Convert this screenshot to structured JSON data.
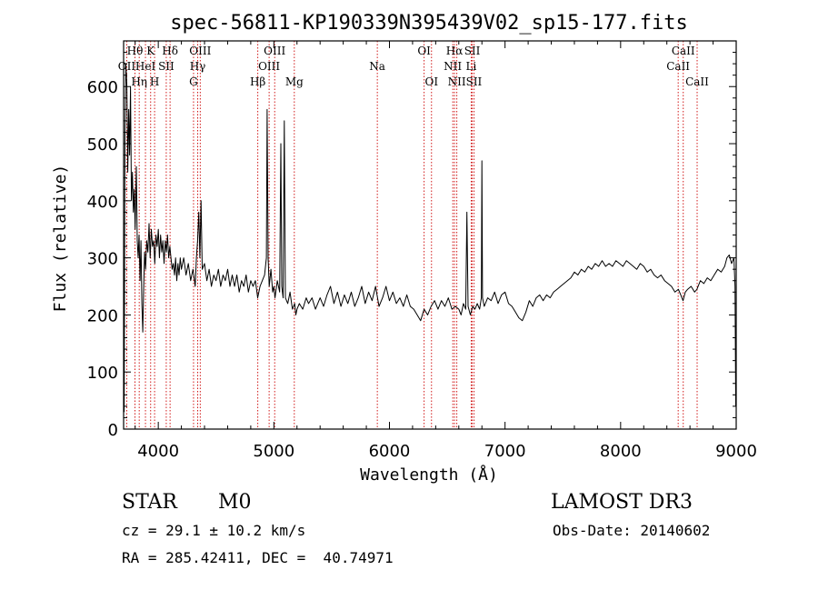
{
  "chart_data": {
    "type": "line",
    "title": "spec-56811-KP190339N395439V02_sp15-177.fits",
    "xlabel": "Wavelength (Å)",
    "ylabel": "Flux (relative)",
    "xlim": [
      3700,
      9000
    ],
    "ylim": [
      0,
      680
    ],
    "x_ticks": [
      4000,
      5000,
      6000,
      7000,
      8000,
      9000
    ],
    "y_ticks": [
      0,
      100,
      200,
      300,
      400,
      500,
      600
    ],
    "series_color": "#000000",
    "line_marker_color": "#cc0000",
    "spectrum": [
      [
        3705,
        30
      ],
      [
        3712,
        520
      ],
      [
        3720,
        640
      ],
      [
        3728,
        600
      ],
      [
        3736,
        450
      ],
      [
        3744,
        560
      ],
      [
        3752,
        480
      ],
      [
        3760,
        600
      ],
      [
        3768,
        400
      ],
      [
        3776,
        450
      ],
      [
        3784,
        380
      ],
      [
        3792,
        420
      ],
      [
        3800,
        350
      ],
      [
        3810,
        460
      ],
      [
        3818,
        330
      ],
      [
        3826,
        300
      ],
      [
        3834,
        340
      ],
      [
        3842,
        260
      ],
      [
        3850,
        330
      ],
      [
        3858,
        220
      ],
      [
        3866,
        170
      ],
      [
        3874,
        250
      ],
      [
        3882,
        310
      ],
      [
        3890,
        280
      ],
      [
        3900,
        330
      ],
      [
        3910,
        310
      ],
      [
        3920,
        360
      ],
      [
        3930,
        300
      ],
      [
        3940,
        350
      ],
      [
        3950,
        320
      ],
      [
        3960,
        330
      ],
      [
        3970,
        290
      ],
      [
        3980,
        340
      ],
      [
        3990,
        320
      ],
      [
        4000,
        350
      ],
      [
        4010,
        300
      ],
      [
        4020,
        340
      ],
      [
        4030,
        310
      ],
      [
        4040,
        330
      ],
      [
        4050,
        290
      ],
      [
        4060,
        330
      ],
      [
        4070,
        310
      ],
      [
        4080,
        340
      ],
      [
        4090,
        300
      ],
      [
        4100,
        320
      ],
      [
        4110,
        300
      ],
      [
        4120,
        280
      ],
      [
        4130,
        290
      ],
      [
        4140,
        270
      ],
      [
        4150,
        300
      ],
      [
        4160,
        260
      ],
      [
        4170,
        290
      ],
      [
        4180,
        270
      ],
      [
        4190,
        300
      ],
      [
        4200,
        280
      ],
      [
        4220,
        300
      ],
      [
        4240,
        270
      ],
      [
        4260,
        290
      ],
      [
        4280,
        260
      ],
      [
        4300,
        280
      ],
      [
        4320,
        250
      ],
      [
        4330,
        300
      ],
      [
        4340,
        330
      ],
      [
        4350,
        380
      ],
      [
        4360,
        300
      ],
      [
        4370,
        400
      ],
      [
        4380,
        280
      ],
      [
        4400,
        290
      ],
      [
        4420,
        260
      ],
      [
        4440,
        280
      ],
      [
        4460,
        250
      ],
      [
        4480,
        270
      ],
      [
        4500,
        260
      ],
      [
        4520,
        280
      ],
      [
        4540,
        250
      ],
      [
        4560,
        270
      ],
      [
        4580,
        260
      ],
      [
        4600,
        280
      ],
      [
        4620,
        250
      ],
      [
        4640,
        270
      ],
      [
        4660,
        250
      ],
      [
        4680,
        270
      ],
      [
        4700,
        240
      ],
      [
        4720,
        260
      ],
      [
        4740,
        250
      ],
      [
        4760,
        270
      ],
      [
        4780,
        240
      ],
      [
        4800,
        260
      ],
      [
        4820,
        250
      ],
      [
        4840,
        260
      ],
      [
        4860,
        230
      ],
      [
        4880,
        250
      ],
      [
        4900,
        260
      ],
      [
        4920,
        270
      ],
      [
        4935,
        300
      ],
      [
        4942,
        560
      ],
      [
        4950,
        300
      ],
      [
        4960,
        250
      ],
      [
        4975,
        280
      ],
      [
        4990,
        240
      ],
      [
        5000,
        250
      ],
      [
        5010,
        230
      ],
      [
        5030,
        260
      ],
      [
        5050,
        240
      ],
      [
        5060,
        500
      ],
      [
        5068,
        250
      ],
      [
        5080,
        230
      ],
      [
        5090,
        540
      ],
      [
        5100,
        230
      ],
      [
        5120,
        220
      ],
      [
        5140,
        240
      ],
      [
        5160,
        210
      ],
      [
        5180,
        220
      ],
      [
        5190,
        200
      ],
      [
        5200,
        210
      ],
      [
        5220,
        220
      ],
      [
        5250,
        210
      ],
      [
        5280,
        230
      ],
      [
        5300,
        220
      ],
      [
        5330,
        230
      ],
      [
        5360,
        210
      ],
      [
        5400,
        230
      ],
      [
        5430,
        215
      ],
      [
        5460,
        235
      ],
      [
        5490,
        250
      ],
      [
        5520,
        220
      ],
      [
        5550,
        240
      ],
      [
        5580,
        215
      ],
      [
        5610,
        235
      ],
      [
        5640,
        220
      ],
      [
        5670,
        240
      ],
      [
        5700,
        215
      ],
      [
        5730,
        230
      ],
      [
        5760,
        250
      ],
      [
        5790,
        220
      ],
      [
        5820,
        240
      ],
      [
        5850,
        225
      ],
      [
        5880,
        250
      ],
      [
        5910,
        215
      ],
      [
        5940,
        230
      ],
      [
        5970,
        250
      ],
      [
        6000,
        225
      ],
      [
        6030,
        240
      ],
      [
        6060,
        220
      ],
      [
        6090,
        230
      ],
      [
        6120,
        215
      ],
      [
        6150,
        235
      ],
      [
        6180,
        215
      ],
      [
        6210,
        210
      ],
      [
        6240,
        200
      ],
      [
        6270,
        190
      ],
      [
        6300,
        210
      ],
      [
        6330,
        200
      ],
      [
        6360,
        215
      ],
      [
        6390,
        225
      ],
      [
        6420,
        210
      ],
      [
        6450,
        225
      ],
      [
        6480,
        215
      ],
      [
        6510,
        230
      ],
      [
        6540,
        210
      ],
      [
        6570,
        215
      ],
      [
        6600,
        210
      ],
      [
        6620,
        200
      ],
      [
        6640,
        220
      ],
      [
        6660,
        210
      ],
      [
        6670,
        380
      ],
      [
        6680,
        215
      ],
      [
        6700,
        200
      ],
      [
        6720,
        215
      ],
      [
        6740,
        210
      ],
      [
        6760,
        220
      ],
      [
        6780,
        210
      ],
      [
        6795,
        230
      ],
      [
        6800,
        470
      ],
      [
        6805,
        230
      ],
      [
        6820,
        215
      ],
      [
        6850,
        230
      ],
      [
        6880,
        225
      ],
      [
        6910,
        240
      ],
      [
        6940,
        220
      ],
      [
        6970,
        235
      ],
      [
        7000,
        240
      ],
      [
        7030,
        220
      ],
      [
        7060,
        215
      ],
      [
        7090,
        205
      ],
      [
        7120,
        195
      ],
      [
        7150,
        190
      ],
      [
        7180,
        205
      ],
      [
        7210,
        225
      ],
      [
        7240,
        215
      ],
      [
        7270,
        230
      ],
      [
        7300,
        235
      ],
      [
        7330,
        225
      ],
      [
        7360,
        235
      ],
      [
        7390,
        230
      ],
      [
        7420,
        240
      ],
      [
        7450,
        245
      ],
      [
        7480,
        250
      ],
      [
        7510,
        255
      ],
      [
        7540,
        260
      ],
      [
        7570,
        265
      ],
      [
        7600,
        275
      ],
      [
        7630,
        270
      ],
      [
        7660,
        280
      ],
      [
        7690,
        275
      ],
      [
        7720,
        285
      ],
      [
        7750,
        280
      ],
      [
        7780,
        290
      ],
      [
        7810,
        285
      ],
      [
        7840,
        295
      ],
      [
        7870,
        285
      ],
      [
        7900,
        290
      ],
      [
        7930,
        285
      ],
      [
        7960,
        295
      ],
      [
        7990,
        290
      ],
      [
        8020,
        285
      ],
      [
        8050,
        295
      ],
      [
        8080,
        290
      ],
      [
        8110,
        285
      ],
      [
        8140,
        280
      ],
      [
        8170,
        290
      ],
      [
        8200,
        285
      ],
      [
        8230,
        275
      ],
      [
        8260,
        280
      ],
      [
        8290,
        270
      ],
      [
        8320,
        265
      ],
      [
        8350,
        270
      ],
      [
        8380,
        260
      ],
      [
        8410,
        255
      ],
      [
        8440,
        250
      ],
      [
        8470,
        240
      ],
      [
        8500,
        245
      ],
      [
        8520,
        235
      ],
      [
        8540,
        225
      ],
      [
        8560,
        240
      ],
      [
        8580,
        245
      ],
      [
        8610,
        250
      ],
      [
        8640,
        240
      ],
      [
        8660,
        245
      ],
      [
        8690,
        260
      ],
      [
        8720,
        255
      ],
      [
        8750,
        265
      ],
      [
        8780,
        260
      ],
      [
        8810,
        270
      ],
      [
        8840,
        280
      ],
      [
        8870,
        275
      ],
      [
        8900,
        285
      ],
      [
        8920,
        300
      ],
      [
        8940,
        305
      ],
      [
        8960,
        290
      ],
      [
        8980,
        300
      ],
      [
        8990,
        250
      ],
      [
        8996,
        40
      ]
    ],
    "line_markers": [
      {
        "label": "OII",
        "wl": 3727,
        "row": 2
      },
      {
        "label": "Hθ",
        "wl": 3798,
        "row": 1
      },
      {
        "label": "Hη",
        "wl": 3835,
        "row": 3
      },
      {
        "label": "HeI",
        "wl": 3889,
        "row": 2
      },
      {
        "label": "K",
        "wl": 3934,
        "row": 1
      },
      {
        "label": "H",
        "wl": 3968,
        "row": 3
      },
      {
        "label": "SII",
        "wl": 4069,
        "row": 2
      },
      {
        "label": "Hδ",
        "wl": 4102,
        "row": 1
      },
      {
        "label": "G",
        "wl": 4305,
        "row": 3
      },
      {
        "label": "Hγ",
        "wl": 4341,
        "row": 2
      },
      {
        "label": "OIII",
        "wl": 4363,
        "row": 1
      },
      {
        "label": "Hβ",
        "wl": 4861,
        "row": 3
      },
      {
        "label": "OIII",
        "wl": 4959,
        "row": 2
      },
      {
        "label": "OIII",
        "wl": 5007,
        "row": 1
      },
      {
        "label": "Mg",
        "wl": 5177,
        "row": 3
      },
      {
        "label": "Na",
        "wl": 5895,
        "row": 2
      },
      {
        "label": "OI",
        "wl": 6300,
        "row": 1
      },
      {
        "label": "OI",
        "wl": 6364,
        "row": 3
      },
      {
        "label": "NII",
        "wl": 6548,
        "row": 2
      },
      {
        "label": "Hα",
        "wl": 6563,
        "row": 1
      },
      {
        "label": "NII",
        "wl": 6583,
        "row": 3
      },
      {
        "label": "Li",
        "wl": 6707,
        "row": 2
      },
      {
        "label": "SII",
        "wl": 6716,
        "row": 1
      },
      {
        "label": "SII",
        "wl": 6731,
        "row": 3
      },
      {
        "label": "CaII",
        "wl": 8498,
        "row": 2
      },
      {
        "label": "CaII",
        "wl": 8542,
        "row": 1
      },
      {
        "label": "CaII",
        "wl": 8662,
        "row": 3
      }
    ]
  },
  "info": {
    "object_type": "STAR",
    "subclass": "M0",
    "survey": "LAMOST DR3",
    "cz": "cz = 29.1 ± 10.2 km/s",
    "obs_date": "Obs-Date: 20140602",
    "coords": "RA = 285.42411, DEC =  40.74971"
  }
}
